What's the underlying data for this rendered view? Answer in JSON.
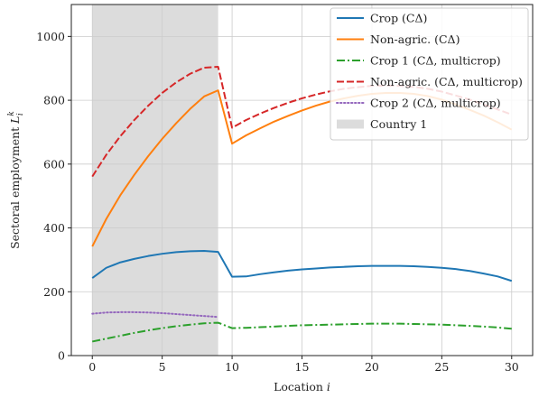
{
  "chart_data": {
    "type": "line",
    "xlabel": "Location i",
    "ylabel": "Sectoral employment L_i^k",
    "xlim": [
      -1.5,
      31.5
    ],
    "ylim": [
      0,
      1100
    ],
    "xticks": [
      0,
      5,
      10,
      15,
      20,
      25,
      30
    ],
    "yticks": [
      0,
      200,
      400,
      600,
      800,
      1000
    ],
    "grid": true,
    "legend_position": "upper right",
    "shaded_region": {
      "label": "Country 1",
      "x_range": [
        0,
        9
      ],
      "color": "#dcdcdc"
    },
    "x": [
      0,
      1,
      2,
      3,
      4,
      5,
      6,
      7,
      8,
      9,
      10,
      11,
      12,
      13,
      14,
      15,
      16,
      17,
      18,
      19,
      20,
      21,
      22,
      23,
      24,
      25,
      26,
      27,
      28,
      29,
      30
    ],
    "series": [
      {
        "name": "Crop (CΔ)",
        "color": "#1f77b4",
        "style": "solid",
        "values": [
          243,
          275,
          292,
          303,
          312,
          319,
          324,
          327,
          328,
          325,
          247,
          248,
          255,
          261,
          266,
          270,
          273,
          276,
          278,
          280,
          281,
          281,
          281,
          280,
          278,
          275,
          271,
          265,
          257,
          248,
          234
        ]
      },
      {
        "name": "Non-agric. (CΔ)",
        "color": "#ff7f0e",
        "style": "solid",
        "values": [
          342,
          428,
          502,
          566,
          625,
          679,
          728,
          773,
          812,
          831,
          664,
          690,
          712,
          733,
          751,
          768,
          783,
          796,
          806,
          814,
          820,
          823,
          823,
          820,
          813,
          802,
          787,
          770,
          752,
          731,
          708
        ]
      },
      {
        "name": "Crop 1 (CΔ, multicrop)",
        "color": "#2ca02c",
        "style": "dashdot",
        "values": [
          44,
          53,
          62,
          71,
          79,
          86,
          92,
          97,
          101,
          103,
          86,
          87,
          89,
          91,
          93,
          95,
          96,
          97,
          98,
          99,
          100,
          100,
          100,
          99,
          98,
          97,
          95,
          93,
          91,
          88,
          84
        ]
      },
      {
        "name": "Non-agric. (CΔ, multicrop)",
        "color": "#d62728",
        "style": "dashed",
        "values": [
          561,
          629,
          687,
          738,
          783,
          823,
          856,
          883,
          902,
          905,
          714,
          738,
          758,
          776,
          792,
          806,
          818,
          828,
          836,
          841,
          845,
          846,
          845,
          842,
          836,
          827,
          815,
          802,
          787,
          771,
          755
        ]
      },
      {
        "name": "Crop 2 (CΔ, multicrop)",
        "color": "#9467bd",
        "style": "dotted",
        "values": [
          131,
          135,
          136,
          136,
          135,
          133,
          130,
          127,
          124,
          121,
          null,
          null,
          null,
          null,
          null,
          null,
          null,
          null,
          null,
          null,
          null,
          null,
          null,
          null,
          null,
          null,
          null,
          null,
          null,
          null,
          null
        ]
      }
    ]
  }
}
